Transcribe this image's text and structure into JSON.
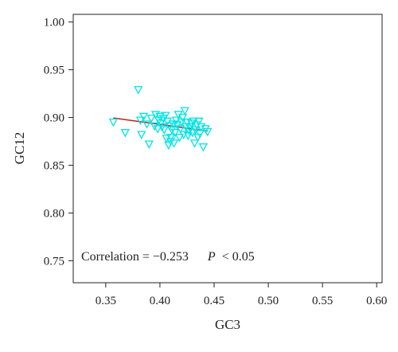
{
  "chart_data": {
    "type": "scatter",
    "title": "",
    "xlabel": "GC3",
    "ylabel": "GC12",
    "xlim": [
      0.32,
      0.605
    ],
    "ylim": [
      0.727,
      1.008
    ],
    "xticks": [
      0.35,
      0.4,
      0.45,
      0.5,
      0.55,
      0.6
    ],
    "xtick_labels": [
      "0.35",
      "0.40",
      "0.45",
      "0.50",
      "0.55",
      "0.60"
    ],
    "yticks": [
      0.75,
      0.8,
      0.85,
      0.9,
      0.95,
      1.0
    ],
    "ytick_labels": [
      "0.75",
      "0.80",
      "0.85",
      "0.90",
      "0.95",
      "1.00"
    ],
    "grid": false,
    "marker": "triangle-down",
    "marker_color": "#00e5e5",
    "series": [
      {
        "x": [
          0.357,
          0.368,
          0.38,
          0.382,
          0.383,
          0.385,
          0.388,
          0.39,
          0.392,
          0.395,
          0.396,
          0.398,
          0.399,
          0.4,
          0.401,
          0.402,
          0.403,
          0.404,
          0.405,
          0.406,
          0.407,
          0.408,
          0.409,
          0.41,
          0.41,
          0.411,
          0.412,
          0.413,
          0.414,
          0.415,
          0.416,
          0.417,
          0.418,
          0.419,
          0.42,
          0.421,
          0.422,
          0.423,
          0.424,
          0.425,
          0.426,
          0.427,
          0.428,
          0.429,
          0.43,
          0.431,
          0.432,
          0.433,
          0.434,
          0.435,
          0.436,
          0.437,
          0.438,
          0.44,
          0.442,
          0.444
        ],
        "y": [
          0.895,
          0.884,
          0.929,
          0.897,
          0.882,
          0.901,
          0.893,
          0.872,
          0.899,
          0.891,
          0.903,
          0.888,
          0.897,
          0.901,
          0.894,
          0.89,
          0.899,
          0.887,
          0.902,
          0.878,
          0.896,
          0.871,
          0.891,
          0.879,
          0.875,
          0.887,
          0.893,
          0.873,
          0.884,
          0.897,
          0.892,
          0.903,
          0.879,
          0.888,
          0.895,
          0.9,
          0.882,
          0.907,
          0.89,
          0.895,
          0.881,
          0.886,
          0.89,
          0.894,
          0.884,
          0.896,
          0.873,
          0.887,
          0.892,
          0.879,
          0.896,
          0.883,
          0.89,
          0.869,
          0.888,
          0.885
        ]
      }
    ],
    "trendline": {
      "x": [
        0.357,
        0.444
      ],
      "y": [
        0.8995,
        0.8858
      ],
      "color": "#c81e1e"
    },
    "annotation": {
      "correlation_text": "Correlation = −0.253",
      "p_symbol": "P",
      "p_text": " < 0.05"
    }
  }
}
